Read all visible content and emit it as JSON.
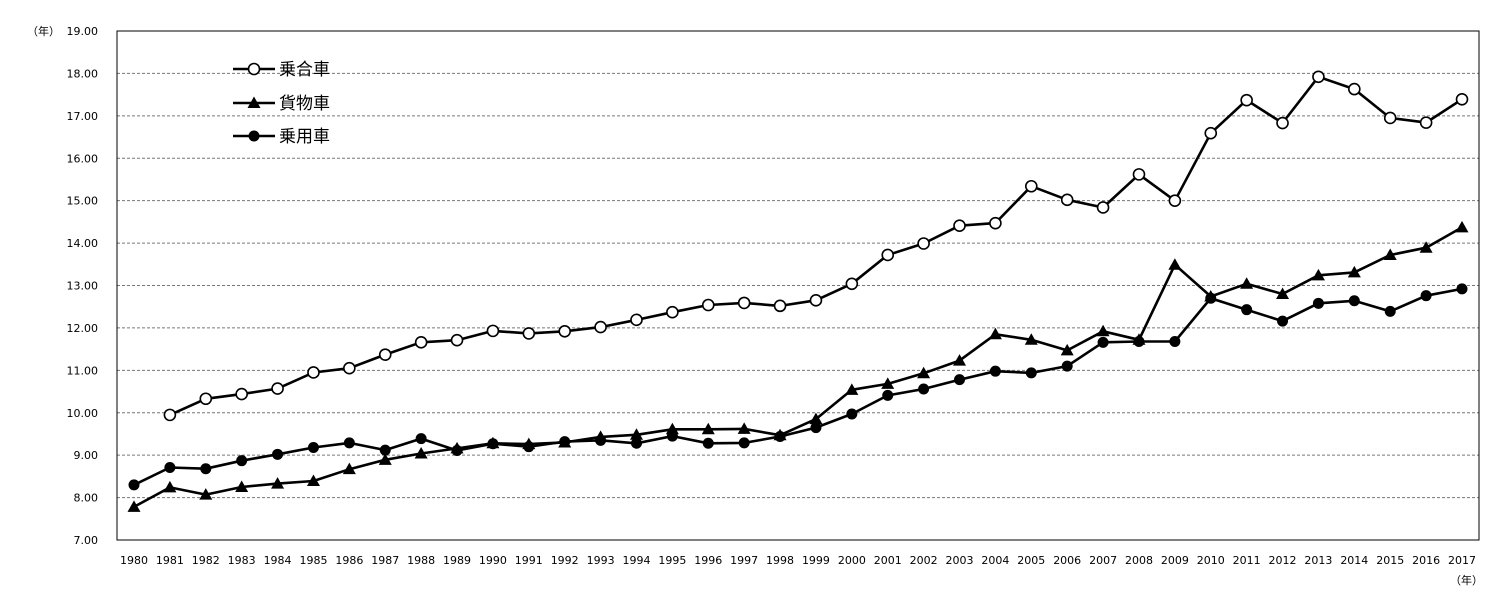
{
  "chart_data": {
    "type": "line",
    "y_unit_label": "（年）",
    "x_unit_label": "（年）",
    "ylim": [
      7,
      19
    ],
    "y_ticks": [
      "7.00",
      "8.00",
      "9.00",
      "10.00",
      "11.00",
      "12.00",
      "13.00",
      "14.00",
      "15.00",
      "16.00",
      "17.00",
      "18.00",
      "19.00"
    ],
    "x": [
      "1980",
      "1981",
      "1982",
      "1983",
      "1984",
      "1985",
      "1986",
      "1987",
      "1988",
      "1989",
      "1990",
      "1991",
      "1992",
      "1993",
      "1994",
      "1995",
      "1996",
      "1997",
      "1998",
      "1999",
      "2000",
      "2001",
      "2002",
      "2003",
      "2004",
      "2005",
      "2006",
      "2007",
      "2008",
      "2009",
      "2010",
      "2011",
      "2012",
      "2013",
      "2014",
      "2015",
      "2016",
      "2017"
    ],
    "grid": true,
    "legend_position": "top-left",
    "series": [
      {
        "name": "乗合車",
        "marker": "open-circle",
        "values": [
          null,
          9.95,
          10.33,
          10.44,
          10.57,
          10.95,
          11.05,
          11.37,
          11.66,
          11.71,
          11.93,
          11.87,
          11.92,
          12.02,
          12.19,
          12.37,
          12.54,
          12.59,
          12.52,
          12.65,
          13.04,
          13.72,
          13.99,
          14.41,
          14.47,
          15.34,
          15.02,
          14.84,
          15.62,
          15.0,
          16.59,
          17.37,
          16.83,
          17.92,
          17.63,
          16.95,
          16.84,
          17.39
        ]
      },
      {
        "name": "貨物車",
        "marker": "filled-triangle",
        "values": [
          7.78,
          8.24,
          8.07,
          8.25,
          8.33,
          8.39,
          8.67,
          8.89,
          9.04,
          9.16,
          9.28,
          9.26,
          9.3,
          9.43,
          9.48,
          9.61,
          9.61,
          9.62,
          9.47,
          9.85,
          10.54,
          10.68,
          10.93,
          11.23,
          11.85,
          11.72,
          11.47,
          11.92,
          11.72,
          13.49,
          12.74,
          13.04,
          12.8,
          13.24,
          13.31,
          13.72,
          13.89,
          14.37
        ]
      },
      {
        "name": "乗用車",
        "marker": "filled-circle",
        "values": [
          8.3,
          8.71,
          8.68,
          8.87,
          9.02,
          9.18,
          9.29,
          9.12,
          9.39,
          9.11,
          9.27,
          9.2,
          9.32,
          9.35,
          9.28,
          9.45,
          9.28,
          9.29,
          9.44,
          9.65,
          9.97,
          10.41,
          10.56,
          10.78,
          10.98,
          10.94,
          11.1,
          11.66,
          11.68,
          11.68,
          12.7,
          12.43,
          12.16,
          12.58,
          12.64,
          12.39,
          12.76,
          12.92
        ]
      }
    ]
  }
}
